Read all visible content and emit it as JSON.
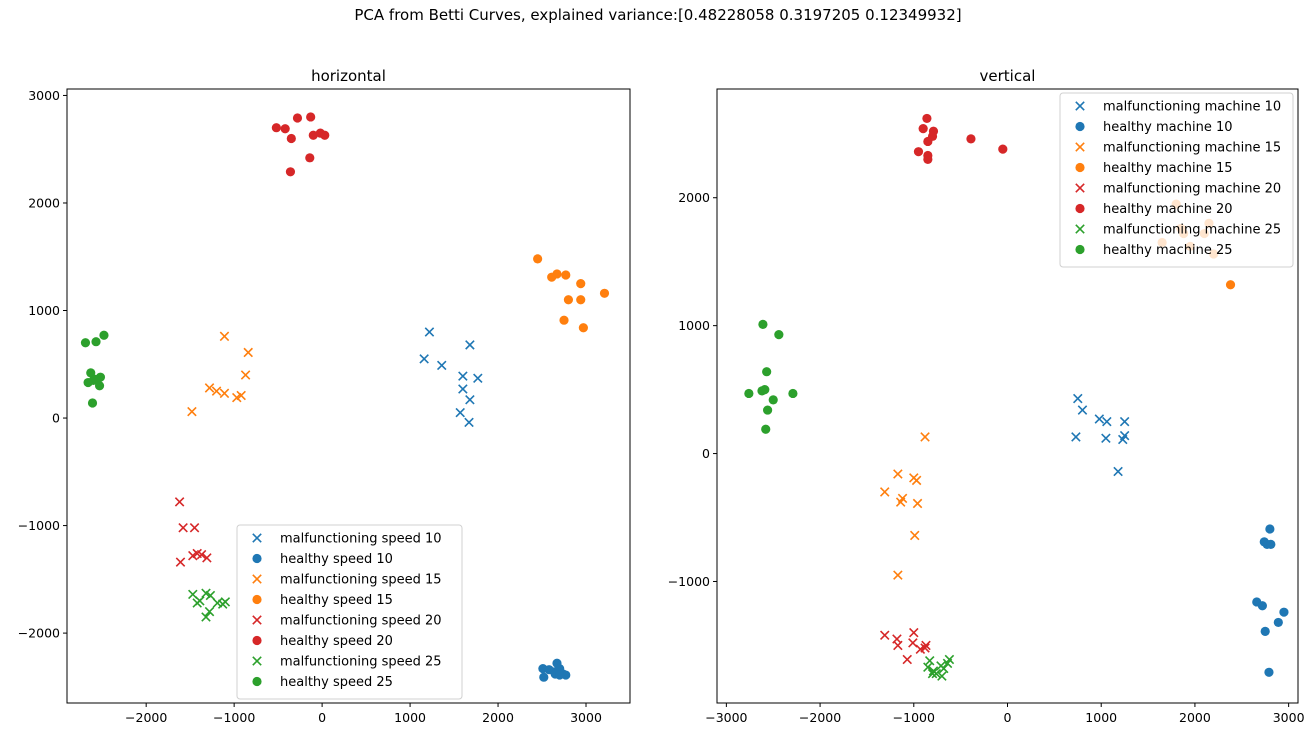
{
  "suptitle": "PCA from Betti Curves, explained variance:[0.48228058 0.3197205  0.12349932]",
  "chart_data": [
    {
      "type": "scatter",
      "title": "horizontal",
      "xlim": [
        -2900,
        3500
      ],
      "ylim": [
        -2650,
        3060
      ],
      "xticks": [
        -2000,
        -1000,
        0,
        1000,
        2000,
        3000
      ],
      "yticks": [
        -2000,
        -1000,
        0,
        1000,
        2000,
        3000
      ],
      "legend_position": "lower-center",
      "series": [
        {
          "name": "malfunctioning speed 10",
          "color": "#1f77b4",
          "marker": "x",
          "points": [
            [
              1160,
              550
            ],
            [
              1220,
              800
            ],
            [
              1360,
              490
            ],
            [
              1680,
              680
            ],
            [
              1600,
              390
            ],
            [
              1770,
              370
            ],
            [
              1600,
              270
            ],
            [
              1680,
              170
            ],
            [
              1570,
              50
            ],
            [
              1670,
              -40
            ]
          ]
        },
        {
          "name": "healthy speed 10",
          "color": "#1f77b4",
          "marker": "o",
          "points": [
            [
              2510,
              -2330
            ],
            [
              2580,
              -2340
            ],
            [
              2640,
              -2360
            ],
            [
              2670,
              -2280
            ],
            [
              2700,
              -2330
            ],
            [
              2740,
              -2380
            ],
            [
              2770,
              -2390
            ],
            [
              2650,
              -2380
            ],
            [
              2520,
              -2410
            ],
            [
              2700,
              -2390
            ]
          ]
        },
        {
          "name": "malfunctioning speed 15",
          "color": "#ff7f0e",
          "marker": "x",
          "points": [
            [
              -1110,
              760
            ],
            [
              -840,
              610
            ],
            [
              -870,
              400
            ],
            [
              -1280,
              280
            ],
            [
              -1200,
              250
            ],
            [
              -1110,
              230
            ],
            [
              -970,
              190
            ],
            [
              -920,
              210
            ],
            [
              -1480,
              60
            ]
          ]
        },
        {
          "name": "healthy speed 15",
          "color": "#ff7f0e",
          "marker": "o",
          "points": [
            [
              2450,
              1480
            ],
            [
              2610,
              1310
            ],
            [
              2670,
              1340
            ],
            [
              2770,
              1330
            ],
            [
              2940,
              1250
            ],
            [
              2800,
              1100
            ],
            [
              2940,
              1100
            ],
            [
              3210,
              1160
            ],
            [
              2750,
              910
            ],
            [
              2970,
              840
            ]
          ]
        },
        {
          "name": "malfunctioning speed 20",
          "color": "#d62728",
          "marker": "x",
          "points": [
            [
              -1620,
              -780
            ],
            [
              -1580,
              -1020
            ],
            [
              -1450,
              -1020
            ],
            [
              -1420,
              -1260
            ],
            [
              -1370,
              -1270
            ],
            [
              -1310,
              -1300
            ],
            [
              -1470,
              -1280
            ],
            [
              -1610,
              -1340
            ]
          ]
        },
        {
          "name": "healthy speed 20",
          "color": "#d62728",
          "marker": "o",
          "points": [
            [
              -520,
              2700
            ],
            [
              -420,
              2690
            ],
            [
              -280,
              2790
            ],
            [
              -130,
              2800
            ],
            [
              -100,
              2630
            ],
            [
              -20,
              2650
            ],
            [
              30,
              2630
            ],
            [
              -350,
              2600
            ],
            [
              -140,
              2420
            ],
            [
              -360,
              2290
            ]
          ]
        },
        {
          "name": "malfunctioning speed 25",
          "color": "#2ca02c",
          "marker": "x",
          "points": [
            [
              -1470,
              -1640
            ],
            [
              -1390,
              -1700
            ],
            [
              -1320,
              -1630
            ],
            [
              -1270,
              -1650
            ],
            [
              -1190,
              -1720
            ],
            [
              -1100,
              -1710
            ],
            [
              -1420,
              -1720
            ],
            [
              -1320,
              -1850
            ],
            [
              -1280,
              -1800
            ],
            [
              -1130,
              -1730
            ]
          ]
        },
        {
          "name": "healthy speed 25",
          "color": "#2ca02c",
          "marker": "o",
          "points": [
            [
              -2690,
              700
            ],
            [
              -2570,
              710
            ],
            [
              -2480,
              770
            ],
            [
              -2630,
              420
            ],
            [
              -2580,
              360
            ],
            [
              -2660,
              330
            ],
            [
              -2520,
              380
            ],
            [
              -2530,
              300
            ],
            [
              -2600,
              350
            ],
            [
              -2610,
              140
            ]
          ]
        }
      ]
    },
    {
      "type": "scatter",
      "title": "vertical",
      "xlim": [
        -3100,
        3100
      ],
      "ylim": [
        -1950,
        2850
      ],
      "xticks": [
        -3000,
        -2000,
        -1000,
        0,
        1000,
        2000,
        3000
      ],
      "yticks": [
        -1000,
        0,
        1000,
        2000
      ],
      "legend_position": "upper-right",
      "series": [
        {
          "name": "malfunctioning machine 10",
          "color": "#1f77b4",
          "marker": "x",
          "points": [
            [
              750,
              430
            ],
            [
              800,
              340
            ],
            [
              980,
              270
            ],
            [
              1060,
              250
            ],
            [
              1250,
              250
            ],
            [
              730,
              130
            ],
            [
              1050,
              120
            ],
            [
              1230,
              110
            ],
            [
              1250,
              140
            ],
            [
              1180,
              -140
            ]
          ]
        },
        {
          "name": "healthy machine 10",
          "color": "#1f77b4",
          "marker": "o",
          "points": [
            [
              2800,
              -590
            ],
            [
              2740,
              -690
            ],
            [
              2770,
              -710
            ],
            [
              2810,
              -710
            ],
            [
              2660,
              -1160
            ],
            [
              2720,
              -1190
            ],
            [
              2950,
              -1240
            ],
            [
              2890,
              -1320
            ],
            [
              2750,
              -1390
            ],
            [
              2790,
              -1710
            ]
          ]
        },
        {
          "name": "malfunctioning machine 15",
          "color": "#ff7f0e",
          "marker": "x",
          "points": [
            [
              -880,
              130
            ],
            [
              -1170,
              -160
            ],
            [
              -1000,
              -190
            ],
            [
              -970,
              -210
            ],
            [
              -1310,
              -300
            ],
            [
              -1120,
              -350
            ],
            [
              -1140,
              -380
            ],
            [
              -960,
              -390
            ],
            [
              -990,
              -640
            ],
            [
              -1170,
              -950
            ]
          ]
        },
        {
          "name": "healthy machine 15",
          "color": "#ff7f0e",
          "marker": "o",
          "points": [
            [
              1800,
              1950
            ],
            [
              2150,
              1800
            ],
            [
              1850,
              1760
            ],
            [
              1880,
              1720
            ],
            [
              2100,
              1720
            ],
            [
              1650,
              1650
            ],
            [
              1950,
              1620
            ],
            [
              2200,
              1560
            ],
            [
              2380,
              1320
            ]
          ]
        },
        {
          "name": "malfunctioning machine 20",
          "color": "#d62728",
          "marker": "x",
          "points": [
            [
              -1310,
              -1420
            ],
            [
              -1180,
              -1450
            ],
            [
              -1170,
              -1500
            ],
            [
              -1000,
              -1400
            ],
            [
              -1010,
              -1480
            ],
            [
              -870,
              -1500
            ],
            [
              -930,
              -1530
            ],
            [
              -1070,
              -1610
            ],
            [
              -880,
              -1520
            ]
          ]
        },
        {
          "name": "healthy machine 20",
          "color": "#d62728",
          "marker": "o",
          "points": [
            [
              -860,
              2620
            ],
            [
              -900,
              2540
            ],
            [
              -790,
              2520
            ],
            [
              -800,
              2480
            ],
            [
              -850,
              2440
            ],
            [
              -390,
              2460
            ],
            [
              -950,
              2360
            ],
            [
              -850,
              2330
            ],
            [
              -850,
              2300
            ],
            [
              -50,
              2380
            ]
          ]
        },
        {
          "name": "malfunctioning machine 25",
          "color": "#2ca02c",
          "marker": "x",
          "points": [
            [
              -620,
              -1610
            ],
            [
              -830,
              -1620
            ],
            [
              -640,
              -1640
            ],
            [
              -710,
              -1660
            ],
            [
              -850,
              -1670
            ],
            [
              -680,
              -1680
            ],
            [
              -790,
              -1700
            ],
            [
              -800,
              -1720
            ],
            [
              -700,
              -1740
            ],
            [
              -760,
              -1720
            ]
          ]
        },
        {
          "name": "healthy machine 25",
          "color": "#2ca02c",
          "marker": "o",
          "points": [
            [
              -2610,
              1010
            ],
            [
              -2440,
              930
            ],
            [
              -2570,
              640
            ],
            [
              -2620,
              490
            ],
            [
              -2590,
              500
            ],
            [
              -2760,
              470
            ],
            [
              -2290,
              470
            ],
            [
              -2500,
              420
            ],
            [
              -2560,
              340
            ],
            [
              -2580,
              190
            ]
          ]
        }
      ]
    }
  ]
}
